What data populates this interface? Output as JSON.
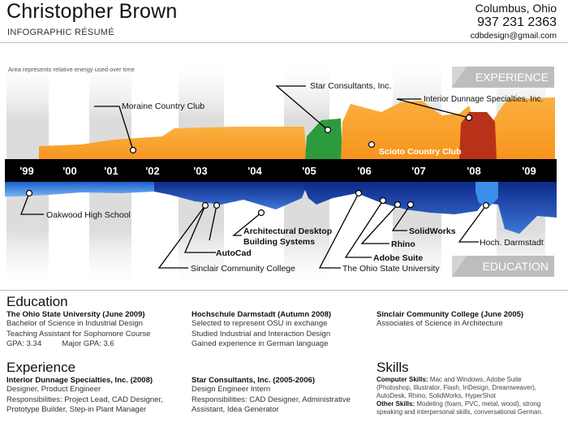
{
  "header": {
    "name": "Christopher Brown",
    "subtitle": "INFOGRAPHIC RÉSUMÉ",
    "city": "Columbus, Ohio",
    "phone": "937 231 2363",
    "email": "cdbdesign@gmail.com"
  },
  "chart": {
    "note": "Area represents relative energy used over time",
    "experience_tab": "EXPERIENCE",
    "education_tab": "EDUCATION",
    "years": [
      "'99",
      "'00",
      "'01",
      "'02",
      "'03",
      "'04",
      "'05",
      "'06",
      "'07",
      "'08",
      "'09"
    ],
    "experience_labels": {
      "moraine": "Moraine Country Club",
      "star": "Star Consultants, Inc.",
      "interior": "Interior Dunnage Specialties, Inc.",
      "scioto": "Scioto Country Club"
    },
    "education_labels": {
      "oakwood": "Oakwood High School",
      "autocad": "AutoCad",
      "arch1": "Architectural Desktop",
      "arch2": "Building Systems",
      "sinclair": "Sinclair Community College",
      "solidworks": "SolidWorks",
      "rhino": "Rhino",
      "adobe": "Adobe Suite",
      "osu": "The Ohio State University",
      "hoch": "Hoch. Darmstadt"
    },
    "colors": {
      "orange": "#f7941d",
      "green": "#2e9a3e",
      "red": "#b8321a",
      "blue": "#1f4fbf",
      "dark_navy": "#0d2a8a",
      "light_blue": "#4a90e2",
      "timeline": "#000000",
      "tab_gray": "#bdbdbd"
    }
  },
  "education": {
    "title": "Education",
    "col1": {
      "heading": "The Ohio State University (June 2009)",
      "lines": [
        "Bachelor of Science in Industrial Design",
        "Teaching Assistant for Sophomore Course"
      ],
      "gpa": "GPA: 3.34",
      "major_gpa": "Major GPA: 3.6"
    },
    "col2": {
      "heading": "Hochschule Darmstadt (Autumn 2008)",
      "lines": [
        "Selected to represent OSU in exchange",
        "Studied Industrial and Interaction Design",
        "Gained experience in German language"
      ]
    },
    "col3": {
      "heading": "Sinclair Community College (June 2005)",
      "lines": [
        "Associates of Science in Architecture"
      ]
    }
  },
  "experience": {
    "title": "Experience",
    "col1": {
      "heading": "Interior Dunnage Specialties, Inc. (2008)",
      "lines": [
        "Designer, Product Engineer",
        "Responsibilities: Project Lead, CAD Designer,",
        "Prototype Builder, Step-in Plant Manager"
      ]
    },
    "col2": {
      "heading": "Star Consultants, Inc. (2005-2006)",
      "lines": [
        "Design Engineer Intern",
        "Responsibilities: CAD Designer, Administrative",
        "Assistant, Idea Generator"
      ]
    }
  },
  "skills": {
    "title": "Skills",
    "computer_label": "Computer Skills:",
    "computer_text": [
      " Mac and Windows, Adobe Suite",
      "(Photoshop, Illustrator, Flash, InDesign, Dreamweaver),",
      "AutoDesk, Rhino, SolidWorks, HyperShot"
    ],
    "other_label": "Other Skills:",
    "other_text": [
      " Modeling (foam, PVC, metal, wood), strong",
      "speaking and interpersonal skills, conversational German."
    ]
  }
}
